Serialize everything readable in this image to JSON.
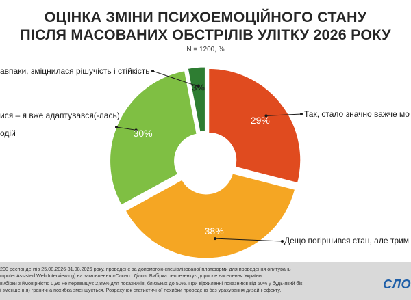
{
  "header": {
    "title_line1": "ОЦІНКА ЗМІНИ ПСИХОЕМОЦІЙНОГО СТАНУ",
    "title_line2": "ПІСЛЯ МАСОВАНИХ ОБСТРІЛІВ УЛІТКУ 2026 РОКУ",
    "subtitle": "N = 1200, %"
  },
  "chart_data": {
    "type": "pie",
    "subtype": "donut",
    "categories": [
      "Так, стало значно важче мо",
      "Дещо погіршився стан, але трим",
      "ися – я вже адаптувався(-лась) подій",
      "авпаки, зміцнилася рішучість і стійкість"
    ],
    "values": [
      29,
      38,
      30,
      3
    ],
    "value_labels": [
      "29%",
      "38%",
      "30%",
      "3%"
    ],
    "colors": [
      "#e04b1f",
      "#f5a623",
      "#7fbf43",
      "#2e7d32"
    ],
    "legend": "none"
  },
  "labels": {
    "a": "Так, стало значно важче мо",
    "b": "Дещо погіршився стан, але трим",
    "c1": "ися – я вже адаптувався(-лась)",
    "c2": "одій",
    "d": "авпаки, зміцнилася рішучість і стійкість"
  },
  "footer": {
    "line1": "200 респондентів 25.08.2026-31.08.2026 року, проведене за допомогою спеціалізованої платформи для проведення опитувань",
    "line2": "mputer Assisted Web Interviewing) на замовлення «Слово і Діло». Вибірка репрезентує доросле населення України.",
    "line3": "вибірки з ймовірністю 0,95 не перевищує 2,89% для показників, близьких до 50%. При відхиленні показників від 50% у будь-який бік",
    "line4": "і зменшення) гранична похибка зменшується. Розрахунок статистичної похибки проведено без урахування дизайн-ефекту.",
    "logo": "СЛО"
  }
}
